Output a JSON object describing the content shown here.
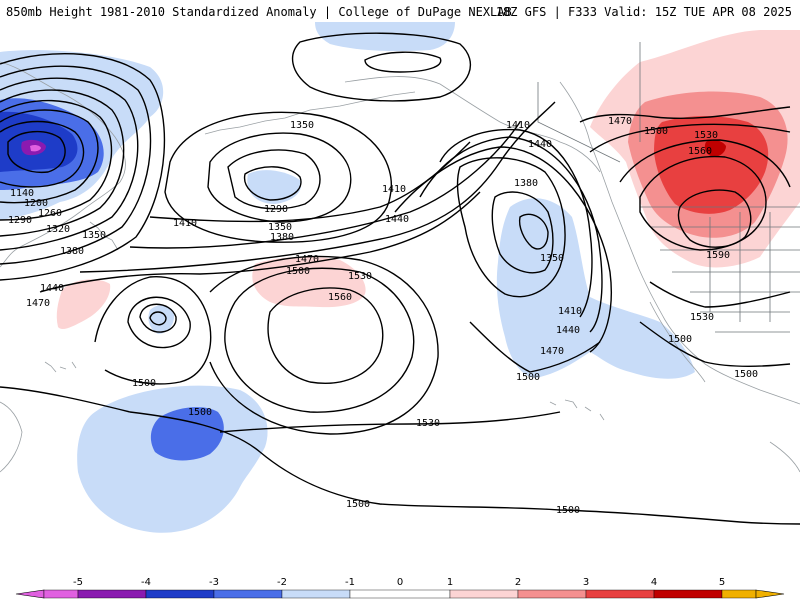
{
  "header": {
    "left": "850mb Height 1981-2010 Standardized Anomaly | College of DuPage NEXLAB",
    "right": "18Z GFS | F333 Valid: 15Z TUE APR 08 2025"
  },
  "colors": {
    "neg5": "#e060e0",
    "neg4": "#8a1ab0",
    "neg3": "#1e3cc8",
    "neg2": "#4a6ee8",
    "neg1": "#c8dcf8",
    "zero": "#ffffff",
    "pos1": "#fcd4d4",
    "pos2": "#f49090",
    "pos3": "#e84040",
    "pos4": "#c00000",
    "pos5": "#f0b000",
    "land": "#9aa0a4",
    "contour": "#000000"
  },
  "contour_labels": [
    {
      "id": "lbl-1350-w",
      "text": "1350"
    },
    {
      "id": "lbl-1290-w",
      "text": "1290"
    },
    {
      "id": "lbl-1350-c",
      "text": "1350"
    },
    {
      "id": "lbl-1380-c",
      "text": "1380"
    },
    {
      "id": "lbl-1410-c",
      "text": "1410"
    },
    {
      "id": "lbl-1410-ne",
      "text": "1410"
    },
    {
      "id": "lbl-1440-ne",
      "text": "1440"
    },
    {
      "id": "lbl-1140",
      "text": "1140"
    },
    {
      "id": "lbl-1200",
      "text": "1200"
    },
    {
      "id": "lbl-1260",
      "text": "1260"
    },
    {
      "id": "lbl-1290-nw",
      "text": "1290"
    },
    {
      "id": "lbl-1320",
      "text": "1320"
    },
    {
      "id": "lbl-1350-nw",
      "text": "1350"
    },
    {
      "id": "lbl-1380-nw",
      "text": "1380"
    },
    {
      "id": "lbl-1410-mid",
      "text": "1410"
    },
    {
      "id": "lbl-1440-mid",
      "text": "1440"
    },
    {
      "id": "lbl-1440-w",
      "text": "1440"
    },
    {
      "id": "lbl-1470-w",
      "text": "1470"
    },
    {
      "id": "lbl-1470-c",
      "text": "1470"
    },
    {
      "id": "lbl-1500-c",
      "text": "1500"
    },
    {
      "id": "lbl-1530-c",
      "text": "1530"
    },
    {
      "id": "lbl-1560-c",
      "text": "1560"
    },
    {
      "id": "lbl-1500-w",
      "text": "1500"
    },
    {
      "id": "lbl-1380-e",
      "text": "1380"
    },
    {
      "id": "lbl-1350-e",
      "text": "1350"
    },
    {
      "id": "lbl-1410-e",
      "text": "1410"
    },
    {
      "id": "lbl-1440-e",
      "text": "1440"
    },
    {
      "id": "lbl-1470-e",
      "text": "1470"
    },
    {
      "id": "lbl-1500-e",
      "text": "1500"
    },
    {
      "id": "lbl-1530-s",
      "text": "1530"
    },
    {
      "id": "lbl-1500-sw",
      "text": "1500"
    },
    {
      "id": "lbl-1500-s1",
      "text": "1500"
    },
    {
      "id": "lbl-1500-s2",
      "text": "1500"
    },
    {
      "id": "lbl-1470-us",
      "text": "1470"
    },
    {
      "id": "lbl-1500-us",
      "text": "1500"
    },
    {
      "id": "lbl-1530-us",
      "text": "1530"
    },
    {
      "id": "lbl-1560-us",
      "text": "1560"
    },
    {
      "id": "lbl-1590-us",
      "text": "1590"
    },
    {
      "id": "lbl-1530-sw",
      "text": "1530"
    },
    {
      "id": "lbl-1500-mx",
      "text": "1500"
    },
    {
      "id": "lbl-1500-mx2",
      "text": "1500"
    }
  ],
  "colorbar": {
    "ticks": [
      "-5",
      "-4",
      "-3",
      "-2",
      "-1",
      "0",
      "1",
      "2",
      "3",
      "4",
      "5"
    ]
  }
}
